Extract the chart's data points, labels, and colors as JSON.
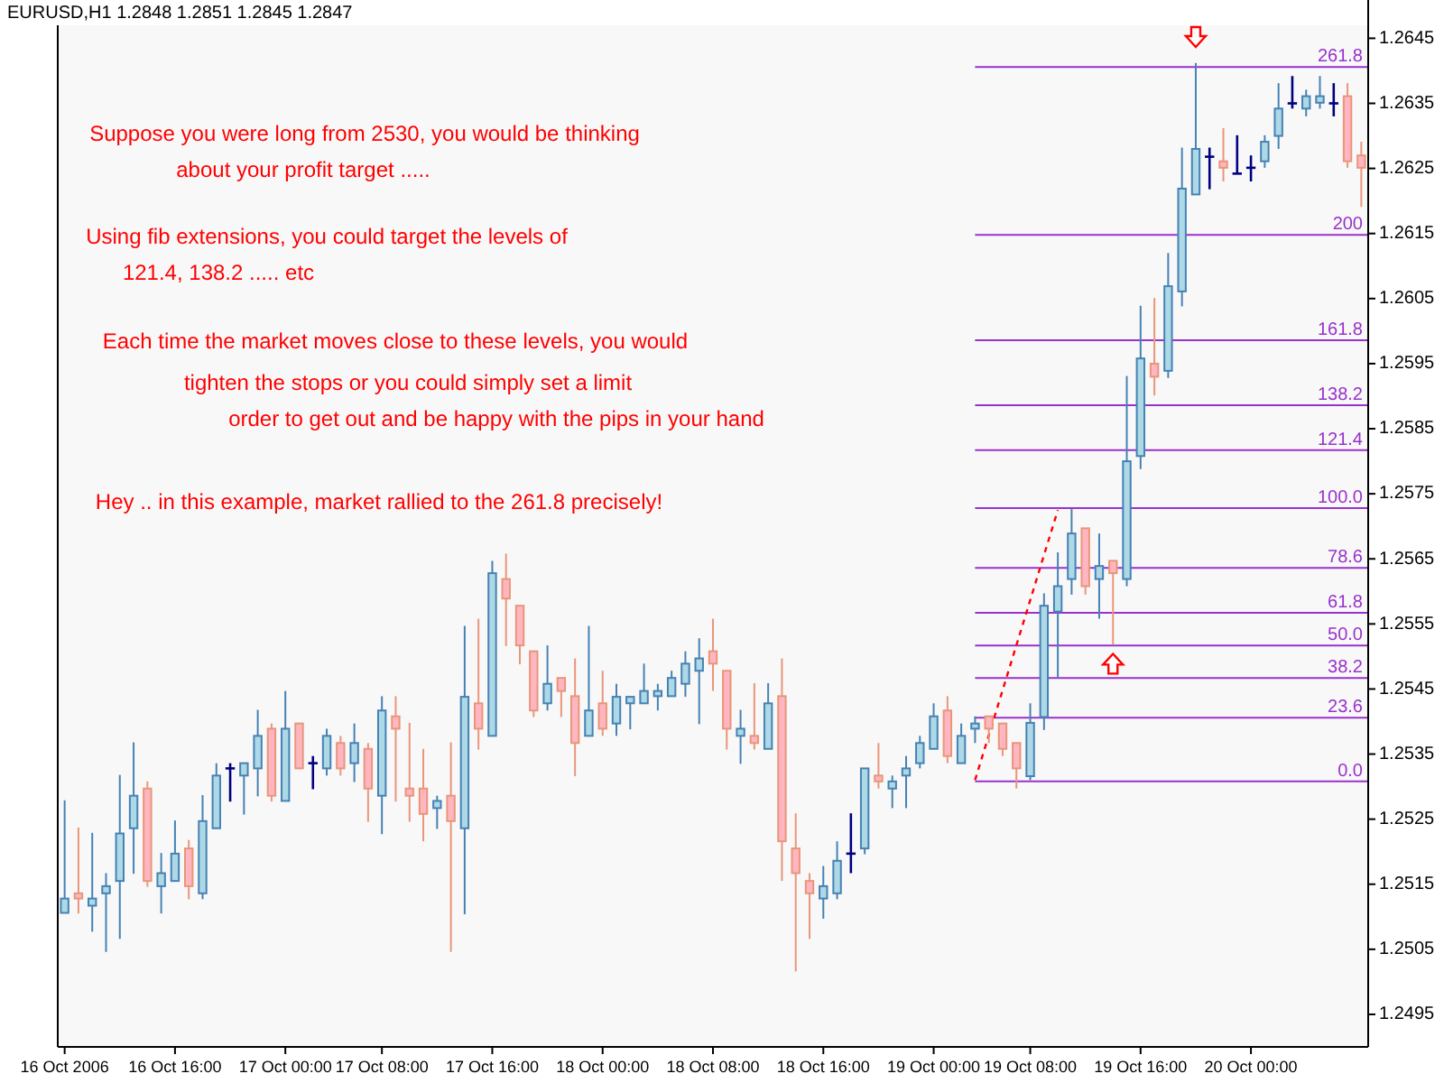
{
  "chart_data": {
    "type": "candlestick",
    "title": "EURUSD,H1 1.2848 1.2851 1.2845 1.2847",
    "categories": [
      "16 Oct 2006",
      null,
      null,
      null,
      null,
      null,
      null,
      null,
      "16 Oct 16:00",
      null,
      null,
      null,
      null,
      null,
      null,
      null,
      "17 Oct 00:00",
      null,
      null,
      null,
      null,
      null,
      null,
      "17 Oct 08:00",
      null,
      null,
      null,
      null,
      null,
      null,
      null,
      "17 Oct 16:00",
      null,
      null,
      null,
      null,
      null,
      null,
      null,
      "18 Oct 00:00",
      null,
      null,
      null,
      null,
      null,
      null,
      null,
      "18 Oct 08:00",
      null,
      null,
      null,
      null,
      null,
      null,
      null,
      "18 Oct 16:00",
      null,
      null,
      null,
      null,
      null,
      null,
      null,
      "19 Oct 00:00",
      null,
      null,
      null,
      null,
      null,
      null,
      "19 Oct 08:00",
      null,
      null,
      null,
      null,
      null,
      null,
      null,
      "19 Oct 16:00",
      null,
      null,
      null,
      null,
      null,
      null,
      null,
      "20 Oct 00:00",
      null,
      null,
      null,
      null,
      null,
      null,
      null,
      null
    ],
    "ohlc": [
      [
        1.25106,
        1.25279,
        1.25106,
        1.25128
      ],
      [
        1.25136,
        1.25237,
        1.25105,
        1.25128
      ],
      [
        1.25117,
        1.25229,
        1.25077,
        1.25128
      ],
      [
        1.25136,
        1.25167,
        1.25046,
        1.25147
      ],
      [
        1.25155,
        1.25318,
        1.25066,
        1.25228
      ],
      [
        1.25236,
        1.25368,
        1.25166,
        1.25286
      ],
      [
        1.25297,
        1.25308,
        1.25146,
        1.25155
      ],
      [
        1.25147,
        1.25198,
        1.25105,
        1.25167
      ],
      [
        1.25155,
        1.25248,
        1.25155,
        1.25197
      ],
      [
        1.25205,
        1.25218,
        1.25127,
        1.25147
      ],
      [
        1.25136,
        1.25287,
        1.25127,
        1.25247
      ],
      [
        1.25236,
        1.25336,
        1.25236,
        1.25317
      ],
      [
        1.25328,
        1.25336,
        1.25277,
        1.25328
      ],
      [
        1.25317,
        1.25336,
        1.25257,
        1.25336
      ],
      [
        1.25328,
        1.25418,
        1.25285,
        1.25378
      ],
      [
        1.25389,
        1.25397,
        1.25277,
        1.25286
      ],
      [
        1.25278,
        1.25447,
        1.25278,
        1.25389
      ],
      [
        1.25397,
        1.25397,
        1.25328,
        1.25328
      ],
      [
        1.25336,
        1.25347,
        1.25296,
        1.25336
      ],
      [
        1.25328,
        1.25389,
        1.25317,
        1.25378
      ],
      [
        1.25367,
        1.25378,
        1.25317,
        1.25328
      ],
      [
        1.25336,
        1.25397,
        1.25307,
        1.25367
      ],
      [
        1.25358,
        1.25367,
        1.25246,
        1.25297
      ],
      [
        1.25286,
        1.25439,
        1.25227,
        1.25417
      ],
      [
        1.25408,
        1.25439,
        1.25277,
        1.25389
      ],
      [
        1.25297,
        1.25398,
        1.25246,
        1.25286
      ],
      [
        1.25297,
        1.25358,
        1.25216,
        1.25258
      ],
      [
        1.25267,
        1.25286,
        1.25235,
        1.25278
      ],
      [
        1.25286,
        1.25368,
        1.25046,
        1.25247
      ],
      [
        1.25236,
        1.25547,
        1.25104,
        1.25438
      ],
      [
        1.25428,
        1.25558,
        1.25357,
        1.25389
      ],
      [
        1.25378,
        1.25647,
        1.25378,
        1.25628
      ],
      [
        1.25619,
        1.25658,
        1.25516,
        1.25589
      ],
      [
        1.25578,
        1.25578,
        1.25488,
        1.25517
      ],
      [
        1.25508,
        1.25508,
        1.25407,
        1.25417
      ],
      [
        1.25428,
        1.25517,
        1.25417,
        1.25458
      ],
      [
        1.25467,
        1.25467,
        1.25407,
        1.25447
      ],
      [
        1.25439,
        1.25497,
        1.25316,
        1.25367
      ],
      [
        1.25378,
        1.25547,
        1.25378,
        1.25417
      ],
      [
        1.25428,
        1.25478,
        1.25378,
        1.25389
      ],
      [
        1.25397,
        1.25458,
        1.25378,
        1.25438
      ],
      [
        1.25428,
        1.25438,
        1.25388,
        1.25438
      ],
      [
        1.25428,
        1.25489,
        1.25428,
        1.25447
      ],
      [
        1.25439,
        1.25458,
        1.25417,
        1.25447
      ],
      [
        1.25439,
        1.25478,
        1.25439,
        1.25467
      ],
      [
        1.25458,
        1.25508,
        1.25438,
        1.25489
      ],
      [
        1.25478,
        1.25528,
        1.25396,
        1.25497
      ],
      [
        1.25508,
        1.25558,
        1.25447,
        1.25489
      ],
      [
        1.25478,
        1.25478,
        1.25357,
        1.25389
      ],
      [
        1.25378,
        1.25418,
        1.25335,
        1.25389
      ],
      [
        1.25378,
        1.25459,
        1.25357,
        1.25367
      ],
      [
        1.25358,
        1.25459,
        1.25358,
        1.25428
      ],
      [
        1.25439,
        1.25497,
        1.25155,
        1.25216
      ],
      [
        1.25205,
        1.25259,
        1.25016,
        1.25167
      ],
      [
        1.25155,
        1.25167,
        1.25066,
        1.25136
      ],
      [
        1.25128,
        1.25178,
        1.25097,
        1.25147
      ],
      [
        1.25136,
        1.25216,
        1.25127,
        1.25186
      ],
      [
        1.25197,
        1.25259,
        1.25167,
        1.25197
      ],
      [
        1.25205,
        1.25328,
        1.25196,
        1.25328
      ],
      [
        1.25317,
        1.25367,
        1.25297,
        1.25308
      ],
      [
        1.25297,
        1.25317,
        1.25267,
        1.25308
      ],
      [
        1.25317,
        1.25347,
        1.25267,
        1.25328
      ],
      [
        1.25336,
        1.25378,
        1.25328,
        1.25367
      ],
      [
        1.25358,
        1.25428,
        1.25358,
        1.25408
      ],
      [
        1.25417,
        1.25439,
        1.25336,
        1.25347
      ],
      [
        1.25336,
        1.25397,
        1.25336,
        1.25378
      ],
      [
        1.25389,
        1.25408,
        1.25367,
        1.25397
      ],
      [
        1.25408,
        1.25408,
        1.25367,
        1.25389
      ],
      [
        1.25397,
        1.25397,
        1.25347,
        1.25358
      ],
      [
        1.25367,
        1.25367,
        1.25297,
        1.25328
      ],
      [
        1.25316,
        1.25428,
        1.2531,
        1.25398
      ],
      [
        1.25407,
        1.25597,
        1.25387,
        1.25578
      ],
      [
        1.25569,
        1.2566,
        1.25467,
        1.25608
      ],
      [
        1.25619,
        1.25727,
        1.25595,
        1.25689
      ],
      [
        1.25697,
        1.25697,
        1.25595,
        1.25608
      ],
      [
        1.25619,
        1.25689,
        1.25558,
        1.25639
      ],
      [
        1.25647,
        1.25647,
        1.25518,
        1.25628
      ],
      [
        1.25619,
        1.25931,
        1.25608,
        1.258
      ],
      [
        1.25808,
        1.26039,
        1.25788,
        1.25958
      ],
      [
        1.2595,
        1.26051,
        1.25901,
        1.2593
      ],
      [
        1.25939,
        1.2612,
        1.25928,
        1.26069
      ],
      [
        1.26061,
        1.26282,
        1.26038,
        1.26219
      ],
      [
        1.2621,
        1.26412,
        1.2621,
        1.2628
      ],
      [
        1.26268,
        1.26282,
        1.26218,
        1.26268
      ],
      [
        1.26261,
        1.26312,
        1.2623,
        1.26251
      ],
      [
        1.26242,
        1.26301,
        1.26242,
        1.26242
      ],
      [
        1.26251,
        1.2627,
        1.2623,
        1.26251
      ],
      [
        1.26261,
        1.26301,
        1.26251,
        1.26291
      ],
      [
        1.263,
        1.26381,
        1.2628,
        1.26342
      ],
      [
        1.2635,
        1.26392,
        1.26342,
        1.2635
      ],
      [
        1.26342,
        1.26371,
        1.2633,
        1.26361
      ],
      [
        1.26351,
        1.26392,
        1.26342,
        1.26361
      ],
      [
        1.2635,
        1.26381,
        1.2633,
        1.2635
      ],
      [
        1.26361,
        1.26381,
        1.26251,
        1.26261
      ],
      [
        1.2627,
        1.26291,
        1.26191,
        1.26251
      ]
    ],
    "series": [
      {
        "type": "line",
        "color": "#ff0000",
        "line_style": "dashed",
        "values": [
          null,
          null,
          null,
          null,
          null,
          null,
          null,
          null,
          null,
          null,
          null,
          null,
          null,
          null,
          null,
          null,
          null,
          null,
          null,
          null,
          null,
          null,
          null,
          null,
          null,
          null,
          null,
          null,
          null,
          null,
          null,
          null,
          null,
          null,
          null,
          null,
          null,
          null,
          null,
          null,
          null,
          null,
          null,
          null,
          null,
          null,
          null,
          null,
          null,
          null,
          null,
          null,
          null,
          null,
          null,
          null,
          null,
          null,
          null,
          null,
          null,
          null,
          null,
          null,
          null,
          null,
          1.2531,
          null,
          null,
          null,
          null,
          null,
          1.25725,
          null,
          null,
          null,
          null,
          null,
          null,
          null,
          null,
          null,
          null,
          null,
          null,
          null,
          null,
          null,
          null,
          null,
          null,
          null,
          null,
          null,
          null
        ]
      }
    ],
    "ylim": [
      1.249,
      1.2647
    ],
    "yticks": [
      1.2495,
      1.2505,
      1.2515,
      1.2525,
      1.2535,
      1.2545,
      1.2555,
      1.2565,
      1.2575,
      1.2585,
      1.2595,
      1.2605,
      1.2615,
      1.2625,
      1.2635,
      1.2645
    ],
    "ref_lines": [
      {
        "axis": "y",
        "value": 1.25308,
        "color": "#9932cc"
      },
      {
        "axis": "y",
        "value": 1.25406,
        "color": "#9932cc"
      },
      {
        "axis": "y",
        "value": 1.25467,
        "color": "#9932cc"
      },
      {
        "axis": "y",
        "value": 1.25517,
        "color": "#9932cc"
      },
      {
        "axis": "y",
        "value": 1.25567,
        "color": "#9932cc"
      },
      {
        "axis": "y",
        "value": 1.25636,
        "color": "#9932cc"
      },
      {
        "axis": "y",
        "value": 1.25728,
        "color": "#9932cc"
      },
      {
        "axis": "y",
        "value": 1.25817,
        "color": "#9932cc"
      },
      {
        "axis": "y",
        "value": 1.25886,
        "color": "#9932cc"
      },
      {
        "axis": "y",
        "value": 1.25986,
        "color": "#9932cc"
      },
      {
        "axis": "y",
        "value": 1.26148,
        "color": "#9932cc"
      },
      {
        "axis": "y",
        "value": 1.26406,
        "color": "#9932cc"
      }
    ],
    "annotations": [
      "Suppose you were long from 2530, you would be thinking",
      "about your profit target .....",
      "Using fib extensions, you could target the levels of",
      "121.4, 138.2 ..... etc",
      "Each time the market moves close to these levels, you would",
      "tighten the stops or you could simply set a limit",
      "order to get out and be happy with the pips in your hand",
      "Hey .. in this example, market rallied to the 261.8 precisely!",
      {
        "text": "0.0",
        "y": 1.25308
      },
      {
        "text": "23.6",
        "y": 1.25406
      },
      {
        "text": "38.2",
        "y": 1.25467
      },
      {
        "text": "50.0",
        "y": 1.25517
      },
      {
        "text": "61.8",
        "y": 1.25567
      },
      {
        "text": "78.6",
        "y": 1.25636
      },
      {
        "text": "100.0",
        "y": 1.25728
      },
      {
        "text": "121.4",
        "y": 1.25817
      },
      {
        "text": "138.2",
        "y": 1.25886
      },
      {
        "text": "161.8",
        "y": 1.25986
      },
      {
        "text": "200",
        "y": 1.26148
      },
      {
        "text": "261.8",
        "y": 1.26406
      }
    ]
  }
}
